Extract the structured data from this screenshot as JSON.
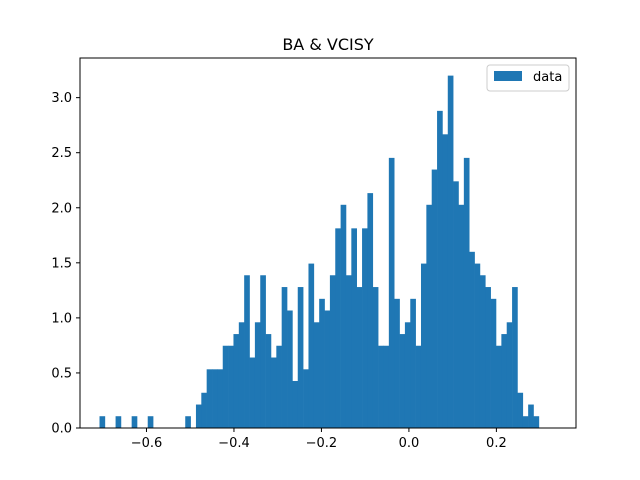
{
  "chart_data": {
    "type": "bar",
    "subtype": "histogram",
    "title": "BA & VCISY",
    "xlabel": "",
    "ylabel": "",
    "xlim": [
      -0.752,
      0.382
    ],
    "ylim": [
      0,
      3.36
    ],
    "xticks": [
      -0.6,
      -0.4,
      -0.2,
      0.0,
      0.2
    ],
    "xtick_labels": [
      "−0.6",
      "−0.4",
      "−0.2",
      "0.0",
      "0.2"
    ],
    "yticks": [
      0.0,
      0.5,
      1.0,
      1.5,
      2.0,
      2.5,
      3.0
    ],
    "ytick_labels": [
      "0.0",
      "0.5",
      "1.0",
      "1.5",
      "2.0",
      "2.5",
      "3.0"
    ],
    "grid": false,
    "legend": {
      "position": "top-right",
      "entries": [
        "data"
      ]
    },
    "bin_start": -0.7074,
    "bin_width": 0.01225,
    "series": [
      {
        "name": "data",
        "color": "#1f77b4",
        "values": [
          0.107,
          0,
          0,
          0.107,
          0,
          0,
          0.107,
          0,
          0,
          0.107,
          0,
          0,
          0,
          0,
          0,
          0,
          0.107,
          0,
          0.213,
          0.32,
          0.533,
          0.533,
          0.533,
          0.747,
          0.747,
          0.853,
          0.96,
          1.387,
          0.64,
          0.96,
          1.387,
          0.853,
          0.64,
          0.747,
          1.28,
          1.067,
          0.427,
          1.28,
          0.533,
          1.493,
          0.96,
          1.173,
          1.067,
          1.387,
          1.813,
          2.027,
          1.387,
          1.813,
          1.28,
          1.813,
          2.133,
          1.28,
          0.747,
          0.747,
          2.453,
          1.173,
          0.853,
          0.96,
          1.173,
          0.747,
          1.493,
          2.027,
          2.347,
          2.88,
          2.667,
          3.2,
          2.24,
          2.027,
          2.453,
          1.6,
          1.493,
          1.387,
          1.28,
          1.173,
          0.747,
          0.853,
          0.96,
          1.28,
          0.32,
          0.107,
          0.213,
          0.107
        ]
      }
    ]
  }
}
